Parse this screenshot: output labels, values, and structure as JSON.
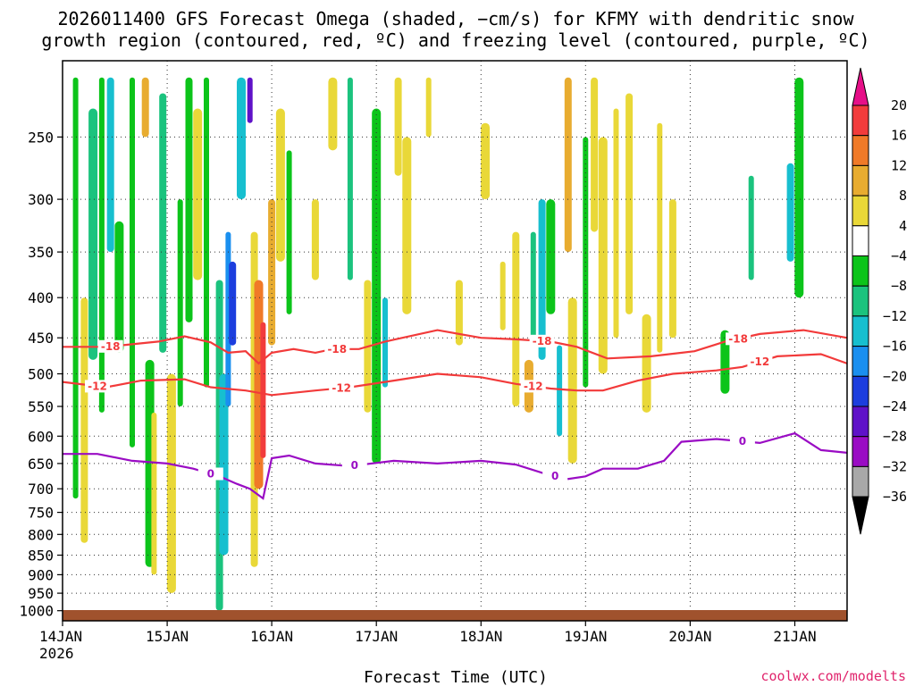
{
  "chart_data": {
    "type": "heatmap",
    "title_line1": "2026011400 GFS Forecast Omega (shaded, −cm/s) for KFMY with dendritic snow",
    "title_line2": "growth region (contoured, red, ºC) and freezing level (contoured, purple, ºC)",
    "xlabel": "Forecast Time (UTC)",
    "credit": "coolwx.com/modelts",
    "x_ticks": [
      {
        "label": "14JAN",
        "sub": "2026",
        "t": 0
      },
      {
        "label": "15JAN",
        "t": 24
      },
      {
        "label": "16JAN",
        "t": 48
      },
      {
        "label": "17JAN",
        "t": 72
      },
      {
        "label": "18JAN",
        "t": 96
      },
      {
        "label": "19JAN",
        "t": 120
      },
      {
        "label": "20JAN",
        "t": 144
      },
      {
        "label": "21JAN",
        "t": 168
      }
    ],
    "xlim_hours": [
      0,
      180
    ],
    "y_ticks": [
      250,
      300,
      350,
      400,
      450,
      500,
      550,
      600,
      650,
      700,
      750,
      800,
      850,
      900,
      950,
      1000
    ],
    "y_tick_labels": [
      "250",
      "300",
      "350",
      "400",
      "450",
      "500",
      "550",
      "600",
      "650",
      "700",
      "750",
      "800",
      "850",
      "900",
      "950",
      "1000"
    ],
    "ylim_hpa": [
      200,
      1030
    ],
    "y_scale": "log-pressure (inverted)",
    "grid": true,
    "colorbar": {
      "labels": [
        "20",
        "16",
        "12",
        "8",
        "4",
        "−4",
        "−8",
        "−12",
        "−16",
        "−20",
        "−24",
        "−28",
        "−32",
        "−36"
      ],
      "colors": [
        "#e60f88",
        "#f23c3c",
        "#f07a28",
        "#e8ac30",
        "#e9d838",
        "#ffffff",
        "#0cc41a",
        "#1bc37e",
        "#17bfcf",
        "#1a8fef",
        "#1c3ede",
        "#5f12c8",
        "#9a0cc4",
        "#a8a8a8",
        "#000000"
      ]
    },
    "omega_features": [
      {
        "t": 3,
        "p1": 210,
        "p2": 720,
        "v": -6
      },
      {
        "t": 5,
        "p1": 400,
        "p2": 820,
        "v": 6
      },
      {
        "t": 7,
        "p1": 230,
        "p2": 480,
        "v": -8
      },
      {
        "t": 9,
        "p1": 210,
        "p2": 560,
        "v": -6
      },
      {
        "t": 11,
        "p1": 210,
        "p2": 350,
        "v": -12
      },
      {
        "t": 13,
        "p1": 320,
        "p2": 470,
        "v": -6
      },
      {
        "t": 16,
        "p1": 210,
        "p2": 620,
        "v": -6
      },
      {
        "t": 19,
        "p1": 210,
        "p2": 250,
        "v": 10
      },
      {
        "t": 20,
        "p1": 480,
        "p2": 880,
        "v": -7
      },
      {
        "t": 21,
        "p1": 560,
        "p2": 900,
        "v": 6
      },
      {
        "t": 23,
        "p1": 220,
        "p2": 470,
        "v": -8
      },
      {
        "t": 25,
        "p1": 500,
        "p2": 950,
        "v": 5
      },
      {
        "t": 27,
        "p1": 300,
        "p2": 550,
        "v": -7
      },
      {
        "t": 29,
        "p1": 210,
        "p2": 430,
        "v": -6
      },
      {
        "t": 31,
        "p1": 230,
        "p2": 380,
        "v": 5
      },
      {
        "t": 33,
        "p1": 210,
        "p2": 520,
        "v": -6
      },
      {
        "t": 36,
        "p1": 380,
        "p2": 1000,
        "v": -8
      },
      {
        "t": 37,
        "p1": 500,
        "p2": 850,
        "v": -14
      },
      {
        "t": 38,
        "p1": 330,
        "p2": 550,
        "v": -16
      },
      {
        "t": 39,
        "p1": 360,
        "p2": 460,
        "v": -21
      },
      {
        "t": 41,
        "p1": 210,
        "p2": 300,
        "v": -12
      },
      {
        "t": 43,
        "p1": 210,
        "p2": 240,
        "v": -26
      },
      {
        "t": 44,
        "p1": 330,
        "p2": 880,
        "v": 7
      },
      {
        "t": 45,
        "p1": 380,
        "p2": 700,
        "v": 14
      },
      {
        "t": 46,
        "p1": 430,
        "p2": 640,
        "v": 19
      },
      {
        "t": 48,
        "p1": 300,
        "p2": 460,
        "v": 9
      },
      {
        "t": 50,
        "p1": 230,
        "p2": 360,
        "v": 5
      },
      {
        "t": 52,
        "p1": 260,
        "p2": 420,
        "v": -6
      },
      {
        "t": 58,
        "p1": 300,
        "p2": 380,
        "v": 5
      },
      {
        "t": 62,
        "p1": 210,
        "p2": 260,
        "v": 5
      },
      {
        "t": 66,
        "p1": 210,
        "p2": 380,
        "v": -8
      },
      {
        "t": 70,
        "p1": 380,
        "p2": 560,
        "v": 5
      },
      {
        "t": 72,
        "p1": 230,
        "p2": 650,
        "v": -7
      },
      {
        "t": 74,
        "p1": 400,
        "p2": 520,
        "v": -12
      },
      {
        "t": 77,
        "p1": 210,
        "p2": 280,
        "v": 5
      },
      {
        "t": 79,
        "p1": 250,
        "p2": 420,
        "v": 5
      },
      {
        "t": 84,
        "p1": 210,
        "p2": 250,
        "v": 5
      },
      {
        "t": 91,
        "p1": 380,
        "p2": 460,
        "v": 5
      },
      {
        "t": 97,
        "p1": 240,
        "p2": 300,
        "v": 5
      },
      {
        "t": 101,
        "p1": 360,
        "p2": 440,
        "v": 5
      },
      {
        "t": 104,
        "p1": 330,
        "p2": 550,
        "v": 5
      },
      {
        "t": 107,
        "p1": 480,
        "p2": 560,
        "v": 9
      },
      {
        "t": 108,
        "p1": 330,
        "p2": 460,
        "v": -10
      },
      {
        "t": 110,
        "p1": 300,
        "p2": 480,
        "v": -14
      },
      {
        "t": 112,
        "p1": 300,
        "p2": 420,
        "v": -7
      },
      {
        "t": 114,
        "p1": 460,
        "p2": 600,
        "v": -12
      },
      {
        "t": 116,
        "p1": 210,
        "p2": 350,
        "v": 10
      },
      {
        "t": 117,
        "p1": 400,
        "p2": 650,
        "v": 6
      },
      {
        "t": 120,
        "p1": 250,
        "p2": 520,
        "v": -6
      },
      {
        "t": 122,
        "p1": 210,
        "p2": 330,
        "v": 6
      },
      {
        "t": 124,
        "p1": 250,
        "p2": 500,
        "v": 6
      },
      {
        "t": 127,
        "p1": 230,
        "p2": 450,
        "v": 5
      },
      {
        "t": 130,
        "p1": 220,
        "p2": 420,
        "v": 5
      },
      {
        "t": 134,
        "p1": 420,
        "p2": 560,
        "v": 6
      },
      {
        "t": 137,
        "p1": 240,
        "p2": 470,
        "v": 5
      },
      {
        "t": 140,
        "p1": 300,
        "p2": 450,
        "v": 5
      },
      {
        "t": 152,
        "p1": 440,
        "p2": 530,
        "v": -6
      },
      {
        "t": 158,
        "p1": 280,
        "p2": 380,
        "v": -8
      },
      {
        "t": 167,
        "p1": 270,
        "p2": 360,
        "v": -12
      },
      {
        "t": 169,
        "p1": 210,
        "p2": 400,
        "v": -7
      }
    ],
    "contours": [
      {
        "name": "-18",
        "color": "#f23a3a",
        "label_hours": [
          11,
          63,
          110,
          155
        ],
        "points": [
          [
            0,
            462
          ],
          [
            10,
            462
          ],
          [
            22,
            455
          ],
          [
            28,
            448
          ],
          [
            34,
            456
          ],
          [
            38,
            470
          ],
          [
            42,
            468
          ],
          [
            45,
            485
          ],
          [
            48,
            470
          ],
          [
            53,
            465
          ],
          [
            58,
            470
          ],
          [
            62,
            465
          ],
          [
            68,
            465
          ],
          [
            74,
            455
          ],
          [
            86,
            440
          ],
          [
            96,
            450
          ],
          [
            104,
            452
          ],
          [
            112,
            455
          ],
          [
            118,
            462
          ],
          [
            125,
            478
          ],
          [
            135,
            475
          ],
          [
            145,
            468
          ],
          [
            152,
            455
          ],
          [
            160,
            445
          ],
          [
            170,
            440
          ],
          [
            180,
            450
          ]
        ]
      },
      {
        "name": "-12",
        "color": "#f23a3a",
        "label_hours": [
          8,
          64,
          108,
          160
        ],
        "points": [
          [
            0,
            512
          ],
          [
            10,
            520
          ],
          [
            18,
            510
          ],
          [
            28,
            508
          ],
          [
            34,
            520
          ],
          [
            42,
            525
          ],
          [
            48,
            532
          ],
          [
            58,
            525
          ],
          [
            66,
            520
          ],
          [
            76,
            510
          ],
          [
            86,
            500
          ],
          [
            96,
            505
          ],
          [
            104,
            515
          ],
          [
            112,
            522
          ],
          [
            118,
            525
          ],
          [
            124,
            525
          ],
          [
            132,
            510
          ],
          [
            140,
            500
          ],
          [
            150,
            495
          ],
          [
            156,
            490
          ],
          [
            164,
            475
          ],
          [
            174,
            472
          ],
          [
            180,
            485
          ]
        ]
      },
      {
        "name": "0",
        "color": "#9a0cc4",
        "label_hours": [
          34,
          67,
          113,
          156
        ],
        "points": [
          [
            0,
            632
          ],
          [
            8,
            632
          ],
          [
            16,
            645
          ],
          [
            24,
            650
          ],
          [
            30,
            660
          ],
          [
            36,
            675
          ],
          [
            40,
            690
          ],
          [
            43,
            700
          ],
          [
            46,
            720
          ],
          [
            48,
            640
          ],
          [
            52,
            635
          ],
          [
            58,
            650
          ],
          [
            66,
            655
          ],
          [
            76,
            645
          ],
          [
            86,
            650
          ],
          [
            96,
            645
          ],
          [
            104,
            652
          ],
          [
            110,
            668
          ],
          [
            116,
            680
          ],
          [
            120,
            675
          ],
          [
            124,
            660
          ],
          [
            132,
            660
          ],
          [
            138,
            645
          ],
          [
            142,
            610
          ],
          [
            150,
            605
          ],
          [
            160,
            612
          ],
          [
            168,
            595
          ],
          [
            174,
            625
          ],
          [
            180,
            630
          ]
        ]
      }
    ]
  }
}
